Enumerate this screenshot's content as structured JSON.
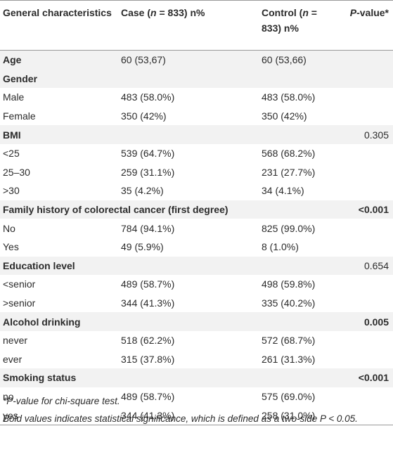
{
  "table": {
    "header": [
      [
        {
          "text": "General characteristics"
        }
      ],
      [
        {
          "text": "Case ("
        },
        {
          "text": "n",
          "italic": true
        },
        {
          "text": " = 833) n%"
        }
      ],
      [
        {
          "text": "Control ("
        },
        {
          "text": "n",
          "italic": true
        },
        {
          "text": " = 833) n%"
        }
      ],
      [
        {
          "text": "P",
          "italic": true
        },
        {
          "text": "-value*"
        }
      ]
    ],
    "rows": [
      {
        "label": "Age",
        "heading": true,
        "case": "60 (53,67)",
        "control": "60 (53,66)"
      },
      {
        "label": "Gender",
        "heading": true
      },
      {
        "label": "Male",
        "case": "483 (58.0%)",
        "control": "483 (58.0%)"
      },
      {
        "label": "Female",
        "case": "350 (42%)",
        "control": "350 (42%)"
      },
      {
        "label": "BMI",
        "heading": true,
        "p": "0.305"
      },
      {
        "label": "<25",
        "case": "539 (64.7%)",
        "control": "568 (68.2%)"
      },
      {
        "label": "25–30",
        "case": "259 (31.1%)",
        "control": "231 (27.7%)"
      },
      {
        "label": ">30",
        "case": "35 (4.2%)",
        "control": "34 (4.1%)"
      },
      {
        "label": "Family history of colorectal cancer (first degree)",
        "heading": true,
        "p": "<0.001",
        "p_bold": true
      },
      {
        "label": "No",
        "case": "784 (94.1%)",
        "control": "825 (99.0%)"
      },
      {
        "label": "Yes",
        "case": "49 (5.9%)",
        "control": "8 (1.0%)"
      },
      {
        "label": "Education level",
        "heading": true,
        "p": "0.654"
      },
      {
        "label": "<senior",
        "case": "489 (58.7%)",
        "control": "498 (59.8%)"
      },
      {
        "label": ">senior",
        "case": "344 (41.3%)",
        "control": "335 (40.2%)"
      },
      {
        "label": "Alcohol drinking",
        "heading": true,
        "p": "0.005",
        "p_bold": true
      },
      {
        "label": "never",
        "case": "518 (62.2%)",
        "control": "572 (68.7%)"
      },
      {
        "label": "ever",
        "case": "315 (37.8%)",
        "control": "261 (31.3%)"
      },
      {
        "label": "Smoking status",
        "heading": true,
        "p": "<0.001",
        "p_bold": true
      },
      {
        "label": "no",
        "case": "489 (58.7%)",
        "control": "575 (69.0%)"
      },
      {
        "label": "yes",
        "case": "344 (41.3%)",
        "control": "258 (31.0%)"
      }
    ]
  },
  "footnotes": [
    "*P-value for chi-square test.",
    "Bold values indicates statistical significance, which is defined as a two-side P < 0.05."
  ]
}
